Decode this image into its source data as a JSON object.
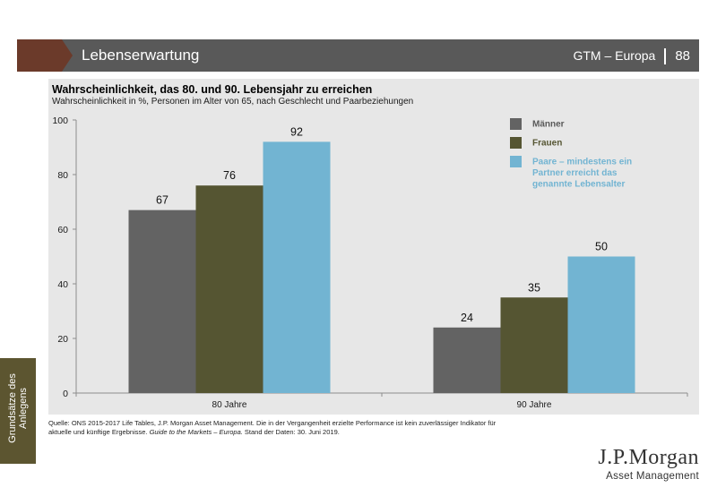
{
  "header": {
    "title": "Lebenserwartung",
    "region": "GTM – Europa",
    "page_number": "88"
  },
  "sidebar": {
    "tab_label": "Grundsätze des Anlegens"
  },
  "footer": {
    "source_line1": "Quelle: ONS 2015-2017 Life Tables, J.P. Morgan Asset Management. Die in der Vergangenheit erzielte Performance ist kein zuverlässiger Indikator für",
    "source_line2_a": "aktuelle und künftige Ergebnisse.",
    "source_line2_italic": "Guide to the Markets – Europa.",
    "source_line2_b": "Stand der Daten: 30. Juni 2019.",
    "logo_line1": "J.P.Morgan",
    "logo_line2": "Asset Management"
  },
  "colors": {
    "header_bg": "#595959",
    "chevron": "#6b3a2a",
    "panel_bg": "#e7e7e7",
    "sidetab_bg": "#5c5530"
  },
  "chart_data": {
    "type": "bar",
    "title": "Wahrscheinlichkeit, das 80. und 90. Lebensjahr zu erreichen",
    "subtitle": "Wahrscheinlichkeit in %, Personen im Alter von 65, nach Geschlecht und Paarbeziehungen",
    "categories": [
      "80 Jahre",
      "90 Jahre"
    ],
    "series": [
      {
        "name": "Männer",
        "values": [
          67,
          24
        ],
        "color": "#636363",
        "label_color": "#595959",
        "legend_lines": [
          "Männer"
        ]
      },
      {
        "name": "Frauen",
        "values": [
          76,
          35
        ],
        "color": "#555532",
        "label_color": "#555532",
        "legend_lines": [
          "Frauen"
        ]
      },
      {
        "name": "Paare – mindestens ein Partner erreicht das genannte Lebensalter",
        "values": [
          92,
          50
        ],
        "color": "#72b4d2",
        "label_color": "#72b4d2",
        "legend_lines": [
          "Paare – mindestens ein",
          "Partner erreicht das",
          "genannte Lebensalter"
        ]
      }
    ],
    "ylim": [
      0,
      100
    ],
    "yticks": [
      0,
      20,
      40,
      60,
      80,
      100
    ],
    "grid": false,
    "legend_position": "top-right"
  }
}
